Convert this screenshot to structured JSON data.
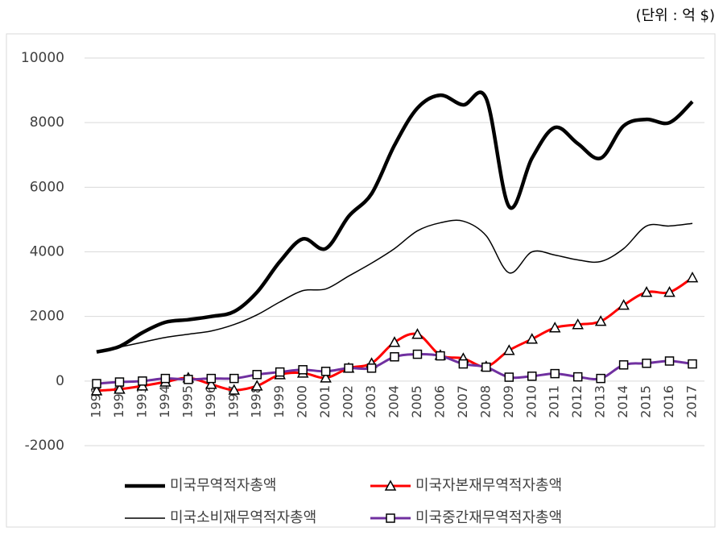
{
  "chart_data": {
    "type": "line",
    "unit_note": "(단위 : 억 $)",
    "categories": [
      "1991",
      "1992",
      "1993",
      "1994",
      "1995",
      "1996",
      "1997",
      "1998",
      "1999",
      "2000",
      "2001",
      "2002",
      "2003",
      "2004",
      "2005",
      "2006",
      "2007",
      "2008",
      "2009",
      "2010",
      "2011",
      "2012",
      "2013",
      "2014",
      "2015",
      "2016",
      "2017"
    ],
    "ylim": [
      -2000,
      10000
    ],
    "yticks": [
      -2000,
      0,
      2000,
      4000,
      6000,
      8000,
      10000
    ],
    "grid": true,
    "series": [
      {
        "name": "미국무역적자총액",
        "color": "#000000",
        "linewidth": 4.5,
        "marker": "none",
        "values": [
          900,
          1070,
          1500,
          1820,
          1900,
          2000,
          2150,
          2750,
          3700,
          4400,
          4100,
          5100,
          5800,
          7300,
          8450,
          8850,
          8550,
          8750,
          5400,
          6900,
          7850,
          7350,
          6900,
          7900,
          8100,
          8000,
          8650
        ]
      },
      {
        "name": "미국자본재무역적자총액",
        "color": "#ff0000",
        "linewidth": 3,
        "marker": "triangle",
        "values": [
          -300,
          -250,
          -150,
          -30,
          100,
          -100,
          -280,
          -150,
          200,
          250,
          100,
          400,
          550,
          1200,
          1450,
          800,
          700,
          450,
          950,
          1300,
          1650,
          1750,
          1850,
          2350,
          2750,
          2750,
          3200
        ]
      },
      {
        "name": "미국소비재무역적자총액",
        "color": "#000000",
        "linewidth": 1.5,
        "marker": "none",
        "values": [
          900,
          1050,
          1200,
          1350,
          1450,
          1550,
          1750,
          2050,
          2450,
          2800,
          2850,
          3250,
          3650,
          4100,
          4650,
          4900,
          4950,
          4500,
          3350,
          4000,
          3900,
          3750,
          3700,
          4100,
          4800,
          4800,
          4880
        ]
      },
      {
        "name": "미국중간재무역적자총액",
        "color": "#7030a0",
        "linewidth": 3,
        "marker": "square",
        "values": [
          -80,
          -30,
          0,
          80,
          50,
          80,
          80,
          200,
          280,
          350,
          300,
          400,
          400,
          750,
          830,
          780,
          530,
          430,
          120,
          150,
          230,
          130,
          80,
          500,
          550,
          620,
          530
        ]
      }
    ]
  }
}
